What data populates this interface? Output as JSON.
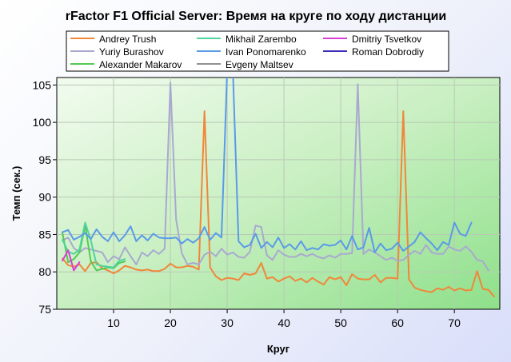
{
  "chart_data": {
    "type": "line",
    "title": "rFactor F1 Official Server: Время на круге по ходу дистанции",
    "xlabel": "Круг",
    "ylabel": "Темп (сек.)",
    "xlim": [
      0,
      78
    ],
    "ylim": [
      75,
      106
    ],
    "xticks": [
      10,
      20,
      30,
      40,
      50,
      60,
      70
    ],
    "yticks": [
      75,
      80,
      85,
      90,
      95,
      100,
      105
    ],
    "grid": true,
    "legend_position": "top",
    "series": [
      {
        "name": "Andrey Trush",
        "color": "#f0873a",
        "x": [
          1,
          2,
          3,
          4,
          5,
          6,
          7,
          8,
          9,
          10,
          11,
          12,
          13,
          14,
          15,
          16,
          17,
          18,
          19,
          20,
          21,
          22,
          23,
          24,
          25,
          26,
          27,
          28,
          29,
          30,
          31,
          32,
          33,
          34,
          35,
          36,
          37,
          38,
          39,
          40,
          41,
          42,
          43,
          44,
          45,
          46,
          47,
          48,
          49,
          50,
          51,
          52,
          53,
          54,
          55,
          56,
          57,
          58,
          59,
          60,
          61,
          62,
          63,
          64,
          65,
          66,
          67,
          68,
          69,
          70,
          71,
          72,
          73,
          74,
          75,
          76,
          77
        ],
        "y": [
          81.8,
          80.9,
          80.7,
          81.0,
          80.1,
          81.2,
          81.3,
          80.5,
          80.2,
          79.8,
          80.2,
          80.8,
          80.6,
          80.3,
          80.2,
          80.3,
          80.1,
          80.1,
          80.4,
          81.1,
          80.6,
          80.6,
          80.8,
          80.7,
          80.3,
          101.5,
          80.6,
          79.4,
          78.9,
          79.2,
          79.1,
          78.9,
          79.8,
          79.6,
          79.8,
          81.2,
          79.1,
          79.3,
          78.7,
          79.1,
          79.4,
          78.8,
          79.1,
          78.6,
          79.2,
          78.7,
          78.3,
          79.3,
          79.0,
          79.3,
          78.2,
          79.7,
          79.1,
          79.0,
          79.0,
          79.6,
          78.6,
          79.2,
          79.2,
          79.1,
          101.5,
          79.0,
          77.9,
          77.6,
          77.4,
          77.3,
          77.8,
          77.6,
          78.0,
          77.5,
          77.8,
          77.5,
          77.6,
          80.1,
          77.7,
          77.6,
          76.7
        ]
      },
      {
        "name": "Yuriy Burashov",
        "color": "#a9a9d0",
        "x": [
          1,
          2,
          3,
          4,
          5,
          6,
          7,
          8,
          9,
          10,
          11,
          12,
          13,
          14,
          15,
          16,
          17,
          18,
          19,
          20,
          21,
          22,
          23,
          24,
          25,
          26,
          27,
          28,
          29,
          30,
          31,
          32,
          33,
          34,
          35,
          36,
          37,
          38,
          39,
          40,
          41,
          42,
          43,
          44,
          45,
          46,
          47,
          48,
          49,
          50,
          51,
          52,
          53,
          54,
          55,
          56,
          57,
          58,
          59,
          60,
          61,
          62,
          63,
          64,
          65,
          66,
          67,
          68,
          69,
          70,
          71,
          72,
          73,
          74,
          75,
          76
        ],
        "y": [
          84.2,
          84.6,
          83.2,
          82.6,
          83.2,
          83.0,
          82.8,
          82.6,
          81.3,
          82.1,
          81.7,
          83.3,
          82.1,
          81.0,
          82.6,
          82.1,
          82.9,
          82.4,
          83.1,
          105.3,
          87.0,
          82.5,
          81.0,
          81.2,
          81.0,
          82.3,
          82.7,
          82.1,
          83.1,
          82.3,
          82.6,
          82.0,
          81.9,
          82.7,
          86.2,
          86.0,
          82.2,
          81.6,
          82.9,
          82.3,
          82.0,
          82.0,
          82.4,
          82.1,
          82.4,
          82.0,
          81.8,
          82.2,
          81.9,
          82.4,
          82.4,
          82.5,
          105.1,
          82.4,
          83.0,
          82.6,
          82.1,
          81.6,
          81.9,
          81.5,
          81.6,
          82.3,
          82.8,
          82.4,
          83.6,
          82.6,
          82.4,
          82.4,
          83.4,
          83.0,
          82.8,
          83.4,
          82.7,
          81.6,
          81.4,
          80.2
        ]
      },
      {
        "name": "Alexander Makarov",
        "color": "#54c954",
        "x": [
          1,
          2,
          3,
          4,
          5,
          6,
          7,
          8,
          9,
          10,
          11,
          12
        ],
        "y": [
          85.2,
          81.3,
          81.7,
          82.6,
          86.2,
          81.4,
          80.2,
          80.4,
          80.6,
          80.5,
          81.2,
          81.4
        ]
      },
      {
        "name": "Mikhail Zarembo",
        "color": "#4fd49e",
        "x": [
          1,
          2,
          3,
          4,
          5,
          6,
          7,
          8,
          9,
          10,
          11,
          12
        ],
        "y": [
          84.3,
          82.7,
          82.4,
          83.0,
          86.6,
          84.2,
          81.0,
          80.8,
          80.7,
          80.6,
          81.5,
          81.7
        ]
      },
      {
        "name": "Ivan Ponomarenko",
        "color": "#5a9ae8",
        "x": [
          1,
          2,
          3,
          4,
          5,
          6,
          7,
          8,
          9,
          10,
          11,
          12,
          13,
          14,
          15,
          16,
          17,
          18,
          19,
          20,
          21,
          22,
          23,
          24,
          25,
          26,
          27,
          28,
          29,
          30,
          31,
          32,
          33,
          34,
          35,
          36,
          37,
          38,
          39,
          40,
          41,
          42,
          43,
          44,
          45,
          46,
          47,
          48,
          49,
          50,
          51,
          52,
          53,
          54,
          55,
          56,
          57,
          58,
          59,
          60,
          61,
          62,
          63,
          64,
          65,
          66,
          67,
          68,
          69,
          70,
          71,
          72,
          73
        ],
        "y": [
          85.3,
          85.6,
          84.3,
          84.7,
          85.2,
          84.4,
          85.7,
          84.7,
          84.1,
          85.3,
          84.1,
          84.9,
          86.1,
          84.1,
          84.9,
          84.2,
          85.1,
          84.6,
          84.5,
          84.5,
          84.6,
          83.8,
          84.4,
          83.9,
          84.5,
          86.0,
          84.3,
          85.2,
          84.6,
          107.0,
          107.0,
          84.1,
          83.3,
          83.6,
          85.1,
          83.2,
          84.0,
          83.3,
          84.6,
          83.2,
          83.7,
          83.0,
          84.1,
          82.9,
          83.2,
          83.0,
          83.7,
          83.5,
          83.6,
          84.2,
          83.0,
          84.8,
          83.0,
          83.3,
          85.9,
          82.6,
          83.8,
          82.9,
          83.1,
          83.9,
          82.8,
          83.4,
          84.0,
          85.3,
          84.5,
          83.8,
          82.9,
          84.0,
          83.6,
          86.6,
          85.1,
          84.8,
          86.6
        ]
      },
      {
        "name": "Evgeny Maltsev",
        "color": "#909090",
        "x": [],
        "y": []
      },
      {
        "name": "Dmitriy Tsvetkov",
        "color": "#d63fd6",
        "x": [
          1,
          2,
          3,
          4
        ],
        "y": [
          81.5,
          82.9,
          80.2,
          81.3
        ]
      },
      {
        "name": "Roman Dobrodiy",
        "color": "#3a2eb8",
        "x": [],
        "y": []
      }
    ],
    "legend_order": [
      "Andrey Trush",
      "Mikhail Zarembo",
      "Dmitriy Tsvetkov",
      "Yuriy Burashov",
      "Ivan Ponomarenko",
      "Roman Dobrodiy",
      "Alexander Makarov",
      "Evgeny Maltsev"
    ]
  }
}
